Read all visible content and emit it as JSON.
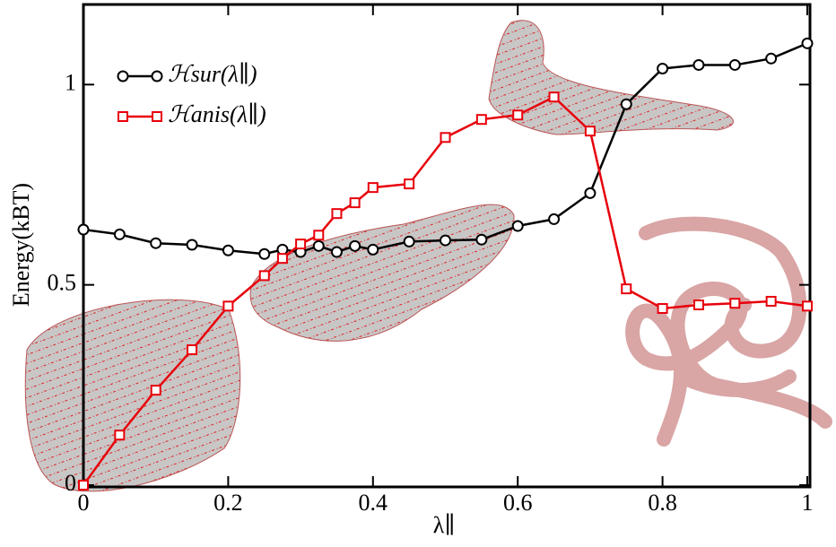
{
  "chart_data": {
    "type": "line",
    "x_label": "λ∥",
    "y_label": "Energy(kBT)",
    "xlim": [
      0,
      1
    ],
    "ylim": [
      0,
      1.2
    ],
    "xticks": [
      0,
      0.2,
      0.4,
      0.6,
      0.8,
      1
    ],
    "yticks": [
      0,
      0.5,
      1
    ],
    "legend": "upper left",
    "series": [
      {
        "name": "ℋsur(λ∥)",
        "color": "#000000",
        "marker": "circle",
        "x": [
          0,
          0.05,
          0.1,
          0.15,
          0.2,
          0.25,
          0.275,
          0.3,
          0.325,
          0.35,
          0.375,
          0.4,
          0.45,
          0.5,
          0.55,
          0.6,
          0.65,
          0.7,
          0.75,
          0.8,
          0.85,
          0.9,
          0.95,
          1
        ],
        "values": [
          0.638,
          0.626,
          0.604,
          0.6,
          0.586,
          0.577,
          0.588,
          0.582,
          0.597,
          0.582,
          0.597,
          0.588,
          0.608,
          0.611,
          0.613,
          0.647,
          0.664,
          0.729,
          0.951,
          1.04,
          1.049,
          1.049,
          1.065,
          1.103
        ]
      },
      {
        "name": "ℋanis(λ∥)",
        "color": "#e8000b",
        "marker": "square",
        "x": [
          0,
          0.05,
          0.1,
          0.15,
          0.2,
          0.25,
          0.275,
          0.3,
          0.325,
          0.35,
          0.375,
          0.4,
          0.45,
          0.5,
          0.55,
          0.6,
          0.65,
          0.7,
          0.75,
          0.8,
          0.85,
          0.9,
          0.95,
          1
        ],
        "values": [
          0,
          0.125,
          0.237,
          0.338,
          0.447,
          0.523,
          0.566,
          0.602,
          0.624,
          0.678,
          0.705,
          0.743,
          0.752,
          0.868,
          0.913,
          0.924,
          0.969,
          0.884,
          0.49,
          0.441,
          0.45,
          0.454,
          0.459,
          0.447
        ]
      }
    ]
  }
}
